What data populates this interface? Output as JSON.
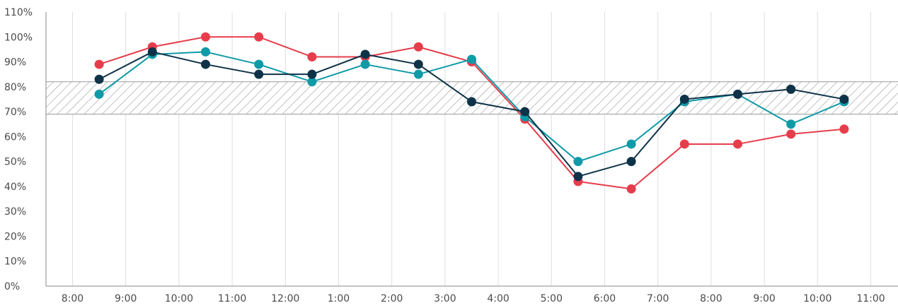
{
  "chart_data": {
    "type": "line",
    "title": "",
    "xlabel": "",
    "ylabel": "",
    "x_ticks": [
      "8:00",
      "9:00",
      "10:00",
      "11:00",
      "12:00",
      "1:00",
      "2:00",
      "3:00",
      "4:00",
      "5:00",
      "6:00",
      "7:00",
      "8:00",
      "9:00",
      "10:00",
      "11:00"
    ],
    "y_ticks": [
      "0%",
      "10%",
      "20%",
      "30%",
      "40%",
      "50%",
      "60%",
      "70%",
      "80%",
      "90%",
      "100%",
      "110%"
    ],
    "ylim": [
      0,
      110
    ],
    "x_range": [
      0,
      15
    ],
    "grid": "vertical",
    "legend": "none",
    "target_band": {
      "low": 69,
      "high": 82,
      "pattern": "diagonal-hatch"
    },
    "x": [
      0.5,
      1.5,
      2.5,
      3.5,
      4.5,
      5.5,
      6.5,
      7.5,
      8.5,
      9.5,
      10.5,
      11.5,
      12.5,
      13.5,
      14.5
    ],
    "series": [
      {
        "color": "#e63d4b",
        "values": [
          89,
          96,
          100,
          100,
          92,
          92,
          96,
          90,
          67,
          42,
          39,
          57,
          57,
          61,
          63
        ]
      },
      {
        "color": "#0f9aa8",
        "values": [
          77,
          93,
          94,
          89,
          82,
          89,
          85,
          91,
          68,
          50,
          57,
          74,
          77,
          65,
          74
        ]
      },
      {
        "color": "#0e3348",
        "values": [
          83,
          94,
          89,
          85,
          85,
          93,
          89,
          74,
          70,
          44,
          50,
          75,
          77,
          79,
          75
        ]
      }
    ]
  }
}
